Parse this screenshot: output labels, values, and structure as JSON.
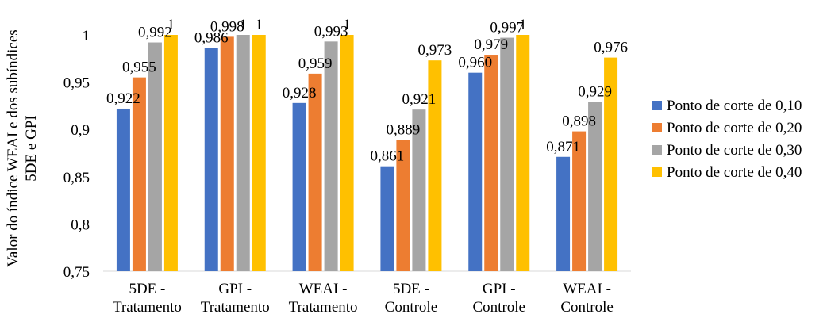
{
  "chart_data": {
    "type": "bar",
    "ylabel": [
      "Valor do índice WEAI e dos subíndices",
      "5DE e GPI"
    ],
    "ylim": [
      0.75,
      1
    ],
    "yticks": [
      "0,75",
      "0,8",
      "0,85",
      "0,9",
      "0,95",
      "1"
    ],
    "ytick_values": [
      0.75,
      0.8,
      0.85,
      0.9,
      0.95,
      1
    ],
    "grid": false,
    "legend_position": "right",
    "categories": [
      [
        "5DE -",
        "Tratamento"
      ],
      [
        "GPI -",
        "Tratamento"
      ],
      [
        "WEAI -",
        "Tratamento"
      ],
      [
        "5DE -",
        "Controle"
      ],
      [
        "GPI -",
        "Controle"
      ],
      [
        "WEAI -",
        "Controle"
      ]
    ],
    "series": [
      {
        "name": "Ponto de corte de 0,10",
        "color": "#4472C4",
        "values": [
          0.922,
          0.986,
          0.928,
          0.861,
          0.96,
          0.871
        ],
        "labels": [
          "0,922",
          "0,986",
          "0,928",
          "0,861",
          "0,960",
          "0,871"
        ]
      },
      {
        "name": "Ponto de corte de 0,20",
        "color": "#ED7D31",
        "values": [
          0.955,
          0.998,
          0.959,
          0.889,
          0.979,
          0.898
        ],
        "labels": [
          "0,955",
          "0,998",
          "0,959",
          "0,889",
          "0,979",
          "0,898"
        ]
      },
      {
        "name": "Ponto de corte de 0,30",
        "color": "#A5A5A5",
        "values": [
          0.992,
          1,
          0.993,
          0.921,
          0.997,
          0.929
        ],
        "labels": [
          "0,992",
          "1",
          "0,993",
          "0,921",
          "0,997",
          "0,929"
        ]
      },
      {
        "name": "Ponto de corte de 0,40",
        "color": "#FFC000",
        "values": [
          1,
          1,
          1,
          0.973,
          1,
          0.976
        ],
        "labels": [
          "1",
          "1",
          "1",
          "0,973",
          "1",
          "0,976"
        ]
      }
    ]
  }
}
